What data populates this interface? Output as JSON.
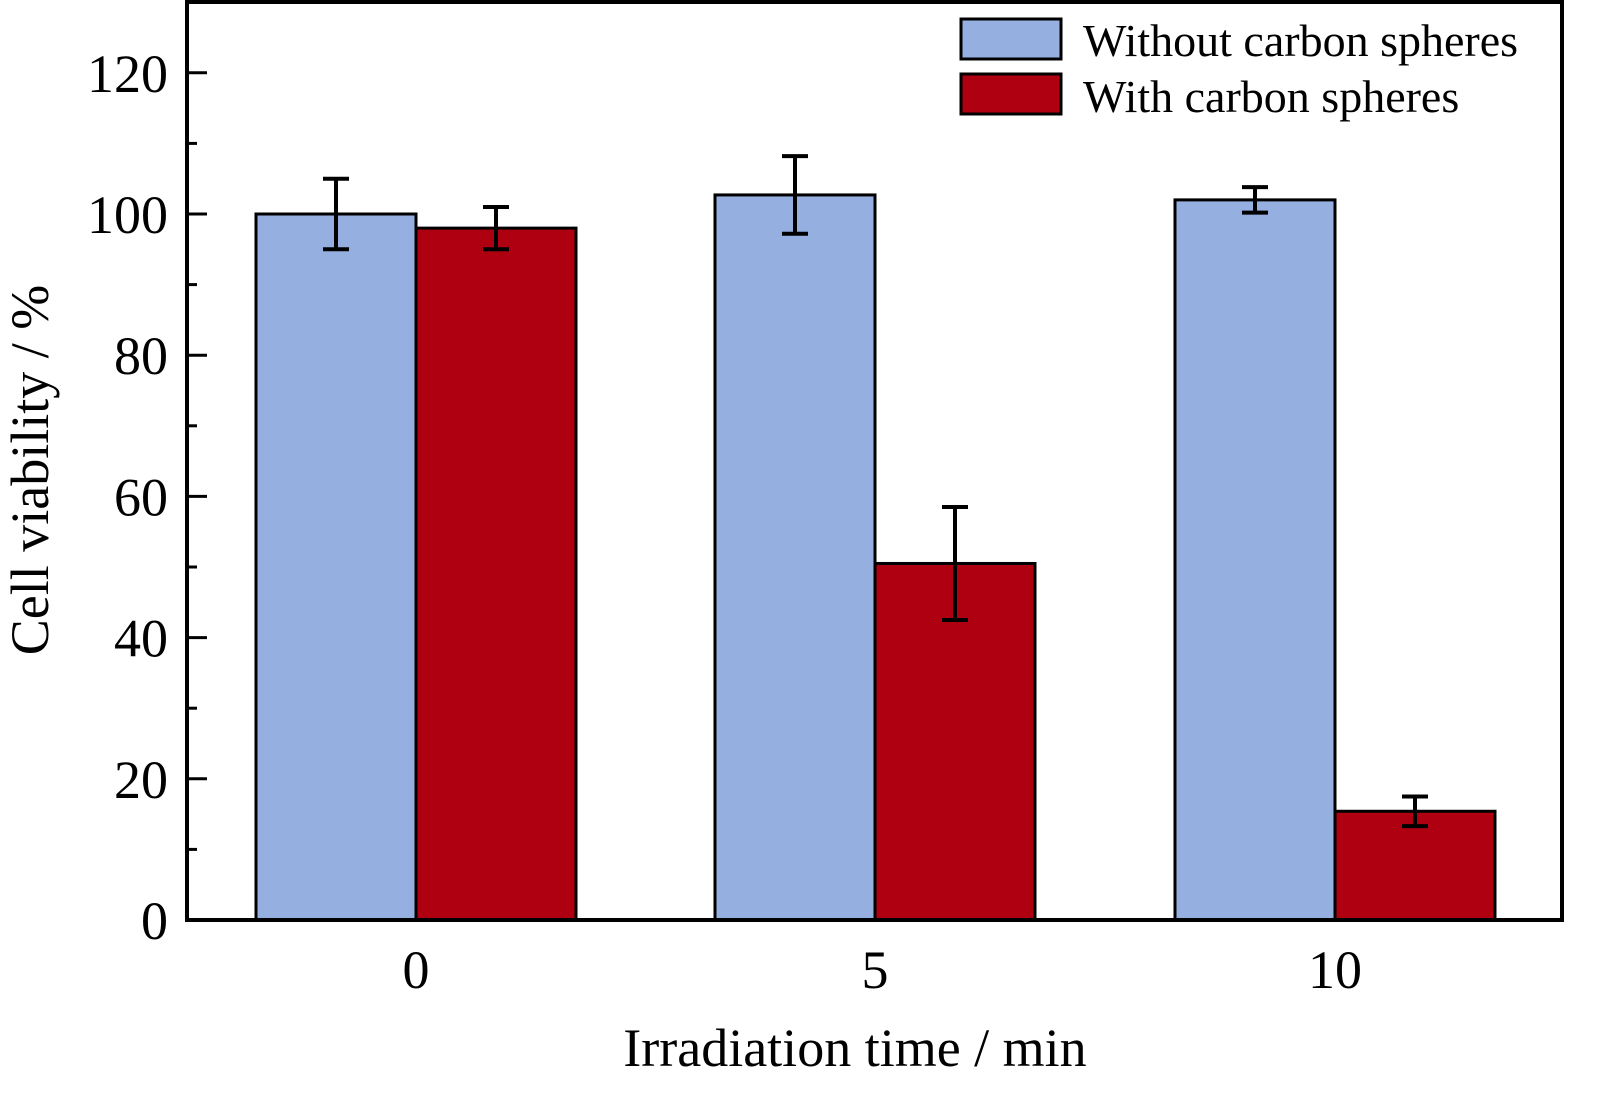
{
  "chart_data": {
    "type": "bar",
    "title": "",
    "xlabel": "Irradiation time / min",
    "ylabel": "Cell viability / %",
    "categories": [
      "0",
      "5",
      "10"
    ],
    "ylim": [
      0,
      130
    ],
    "yticks": [
      0,
      20,
      40,
      60,
      80,
      100,
      120
    ],
    "grid": false,
    "legend_position": "top-right",
    "series": [
      {
        "name": "Without carbon spheres",
        "color": "#95AFE0",
        "values": [
          100,
          102.7,
          102
        ],
        "errors": [
          5,
          5.5,
          1.8
        ]
      },
      {
        "name": "With carbon spheres",
        "color": "#AE0010",
        "values": [
          98,
          50.5,
          15.4
        ],
        "errors": [
          3,
          8,
          2.1
        ]
      }
    ]
  }
}
